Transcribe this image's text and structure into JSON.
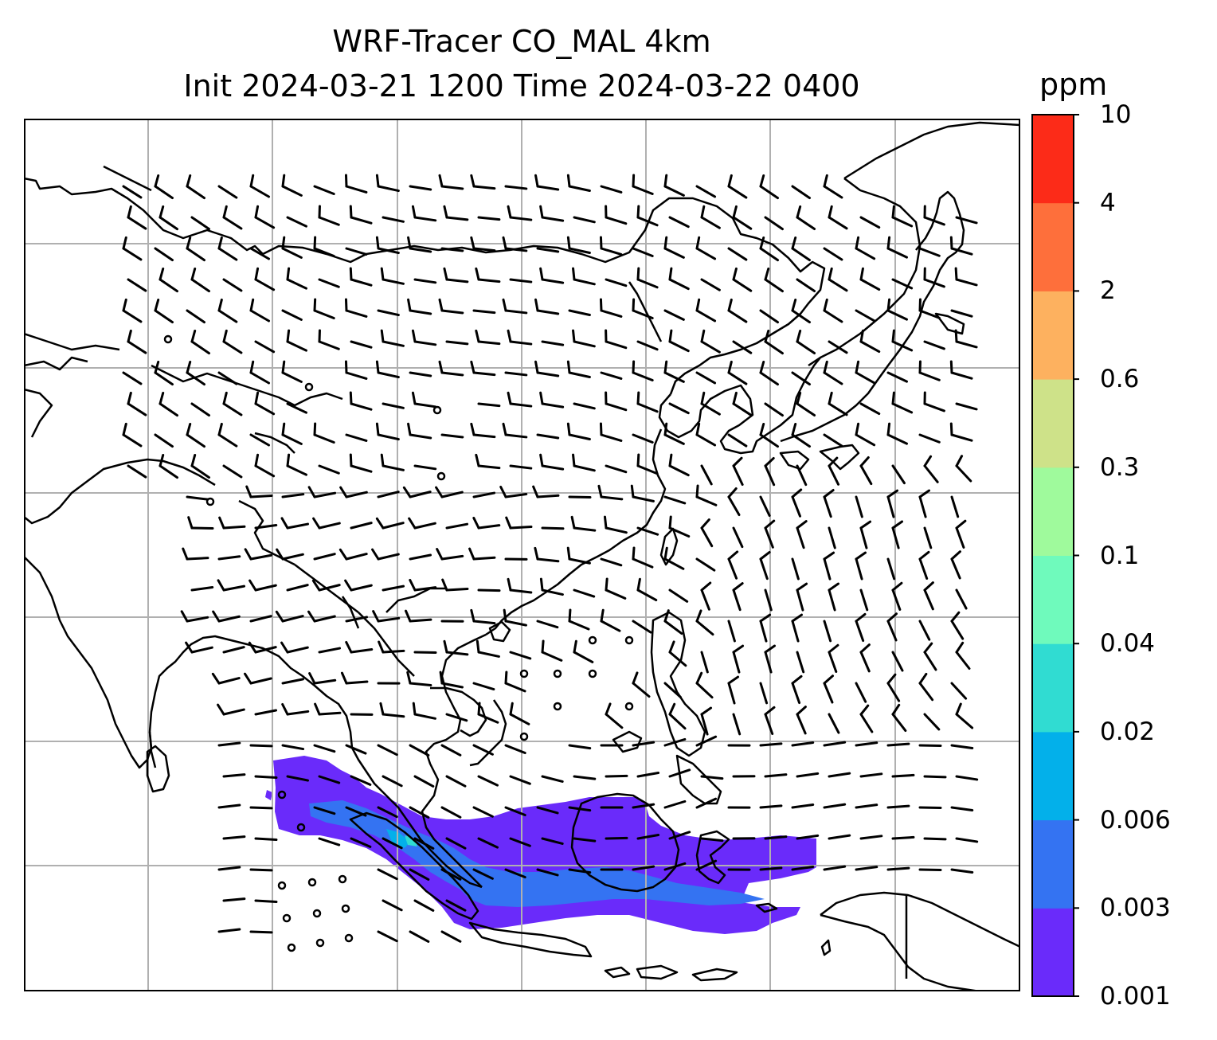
{
  "title": {
    "line1": "WRF-Tracer CO_MAL 4km",
    "line2": "Init 2024-03-21 1200 Time 2024-03-22 0400"
  },
  "colorbar": {
    "unit": "ppm",
    "levels": [
      "0.001",
      "0.003",
      "0.006",
      "0.02",
      "0.04",
      "0.1",
      "0.3",
      "0.6",
      "2",
      "4",
      "10"
    ],
    "colors": [
      "#6a2bfa",
      "#3473f2",
      "#03b0ea",
      "#30dcd2",
      "#6ffabc",
      "#9ffa9c",
      "#cee289",
      "#fdb15f",
      "#fe6f3b",
      "#fc2b18"
    ]
  },
  "map": {
    "coastline_color": "#000000",
    "gridline_color": "#b0b0b0",
    "barb_color": "#000000"
  }
}
